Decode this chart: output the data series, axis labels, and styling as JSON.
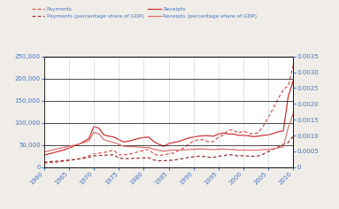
{
  "years": [
    1960,
    1961,
    1962,
    1963,
    1964,
    1965,
    1966,
    1967,
    1968,
    1969,
    1970,
    1971,
    1972,
    1973,
    1974,
    1975,
    1976,
    1977,
    1978,
    1979,
    1980,
    1981,
    1982,
    1983,
    1984,
    1985,
    1986,
    1987,
    1988,
    1989,
    1990,
    1991,
    1992,
    1993,
    1994,
    1995,
    1996,
    1997,
    1998,
    1999,
    2000,
    2001,
    2002,
    2003,
    2004,
    2005,
    2006,
    2007,
    2008,
    2009,
    2010
  ],
  "payments": [
    9000,
    10000,
    11000,
    12000,
    13500,
    15000,
    17000,
    19000,
    22000,
    26000,
    30000,
    32000,
    33000,
    36000,
    38000,
    28000,
    28000,
    29000,
    32000,
    35000,
    38000,
    40000,
    30000,
    26000,
    28000,
    30000,
    32000,
    38000,
    43000,
    52000,
    59000,
    62000,
    62000,
    57000,
    58000,
    68000,
    73000,
    84000,
    84000,
    77000,
    82000,
    77000,
    75000,
    78000,
    93000,
    113000,
    133000,
    155000,
    175000,
    184000,
    230000
  ],
  "receipts": [
    27000,
    30000,
    33000,
    36000,
    39000,
    43000,
    48000,
    52000,
    58000,
    65000,
    92000,
    88000,
    73000,
    70000,
    68000,
    62000,
    57000,
    59000,
    62000,
    65000,
    67000,
    68000,
    58000,
    52000,
    47000,
    53000,
    56000,
    58000,
    62000,
    66000,
    68000,
    70000,
    71000,
    71000,
    70000,
    75000,
    77000,
    75000,
    75000,
    72000,
    72000,
    71000,
    69000,
    70000,
    72000,
    73000,
    76000,
    80000,
    82000,
    160000,
    195000
  ],
  "payments_gdp": [
    0.00016,
    0.000175,
    0.000185,
    0.000195,
    0.00021,
    0.000225,
    0.00024,
    0.00026,
    0.000285,
    0.000315,
    0.000355,
    0.00037,
    0.000375,
    0.000385,
    0.000395,
    0.00029,
    0.000275,
    0.00027,
    0.00028,
    0.000285,
    0.00029,
    0.0003,
    0.00023,
    0.0002,
    0.000205,
    0.000215,
    0.00022,
    0.000255,
    0.000275,
    0.00031,
    0.00033,
    0.000345,
    0.00034,
    0.000315,
    0.00031,
    0.000345,
    0.00036,
    0.000395,
    0.000385,
    0.00035,
    0.000365,
    0.00035,
    0.000345,
    0.000355,
    0.000415,
    0.000495,
    0.00057,
    0.00064,
    0.00072,
    0.00078,
    0.00098
  ],
  "receipts_gdp": [
    0.00048,
    0.00052,
    0.000555,
    0.000595,
    0.000625,
    0.00066,
    0.000695,
    0.00073,
    0.00078,
    0.00084,
    0.0011,
    0.00105,
    0.00087,
    0.00082,
    0.00078,
    0.00072,
    0.00066,
    0.00065,
    0.00065,
    0.000635,
    0.000625,
    0.000625,
    0.00057,
    0.000535,
    0.0005,
    0.00053,
    0.000545,
    0.00054,
    0.000545,
    0.00056,
    0.000565,
    0.000575,
    0.000575,
    0.000565,
    0.000555,
    0.00057,
    0.000575,
    0.00056,
    0.00056,
    0.00054,
    0.00054,
    0.00054,
    0.000535,
    0.00054,
    0.000555,
    0.00056,
    0.00058,
    0.000615,
    0.00064,
    0.00125,
    0.0017
  ],
  "color_payments": "#e05050",
  "color_receipts": "#cc3333",
  "color_payments_gdp": "#993333",
  "color_receipts_gdp": "#e07070",
  "left_ylim": [
    0,
    250000
  ],
  "right_ylim": [
    0,
    0.0035
  ],
  "left_yticks": [
    0,
    50000,
    100000,
    150000,
    200000,
    250000
  ],
  "right_yticks": [
    0,
    0.0005,
    0.001,
    0.0015,
    0.002,
    0.0025,
    0.003,
    0.0035
  ],
  "xticks": [
    1960,
    1965,
    1970,
    1975,
    1980,
    1985,
    1990,
    1995,
    2000,
    2005,
    2010
  ],
  "legend_payments": "Payments",
  "legend_receipts": "Receipts",
  "legend_payments_gdp": "Payments (percentage share of GDP)",
  "legend_receipts_gdp": "Receipts (percentage share of GDP)",
  "bg_color": "#f0ede8",
  "plot_bg": "#ffffff",
  "tick_color": "#4472c4",
  "legend_text_color": "#4472c4"
}
